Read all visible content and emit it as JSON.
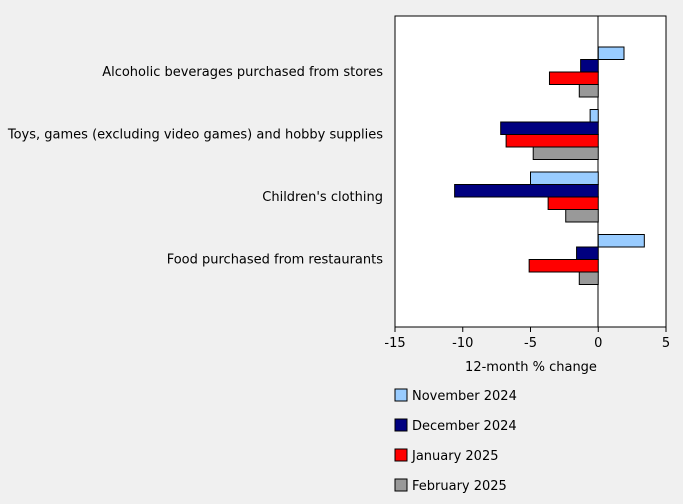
{
  "chart_data": {
    "type": "bar",
    "orientation": "horizontal",
    "categories": [
      "Alcoholic beverages purchased from stores",
      "Toys, games (excluding video games) and hobby supplies",
      "Children's clothing",
      "Food purchased from restaurants"
    ],
    "series": [
      {
        "name": "November 2024",
        "color": "#99ccff",
        "values": [
          1.9,
          -0.6,
          -5.0,
          3.4
        ]
      },
      {
        "name": "December 2024",
        "color": "#000080",
        "values": [
          -1.3,
          -7.2,
          -10.6,
          -1.6
        ]
      },
      {
        "name": "January 2025",
        "color": "#ff0000",
        "values": [
          -3.6,
          -6.8,
          -3.7,
          -5.1
        ]
      },
      {
        "name": "February 2025",
        "color": "#999999",
        "values": [
          -1.4,
          -4.8,
          -2.4,
          -1.4
        ]
      }
    ],
    "xlabel": "12-month % change",
    "xlim": [
      -15,
      5
    ],
    "xticks": [
      -15,
      -10,
      -5,
      0,
      5
    ],
    "xtick_labels": [
      "-15",
      "-10",
      "-5",
      "0",
      "5"
    ],
    "legend": "bottom"
  }
}
